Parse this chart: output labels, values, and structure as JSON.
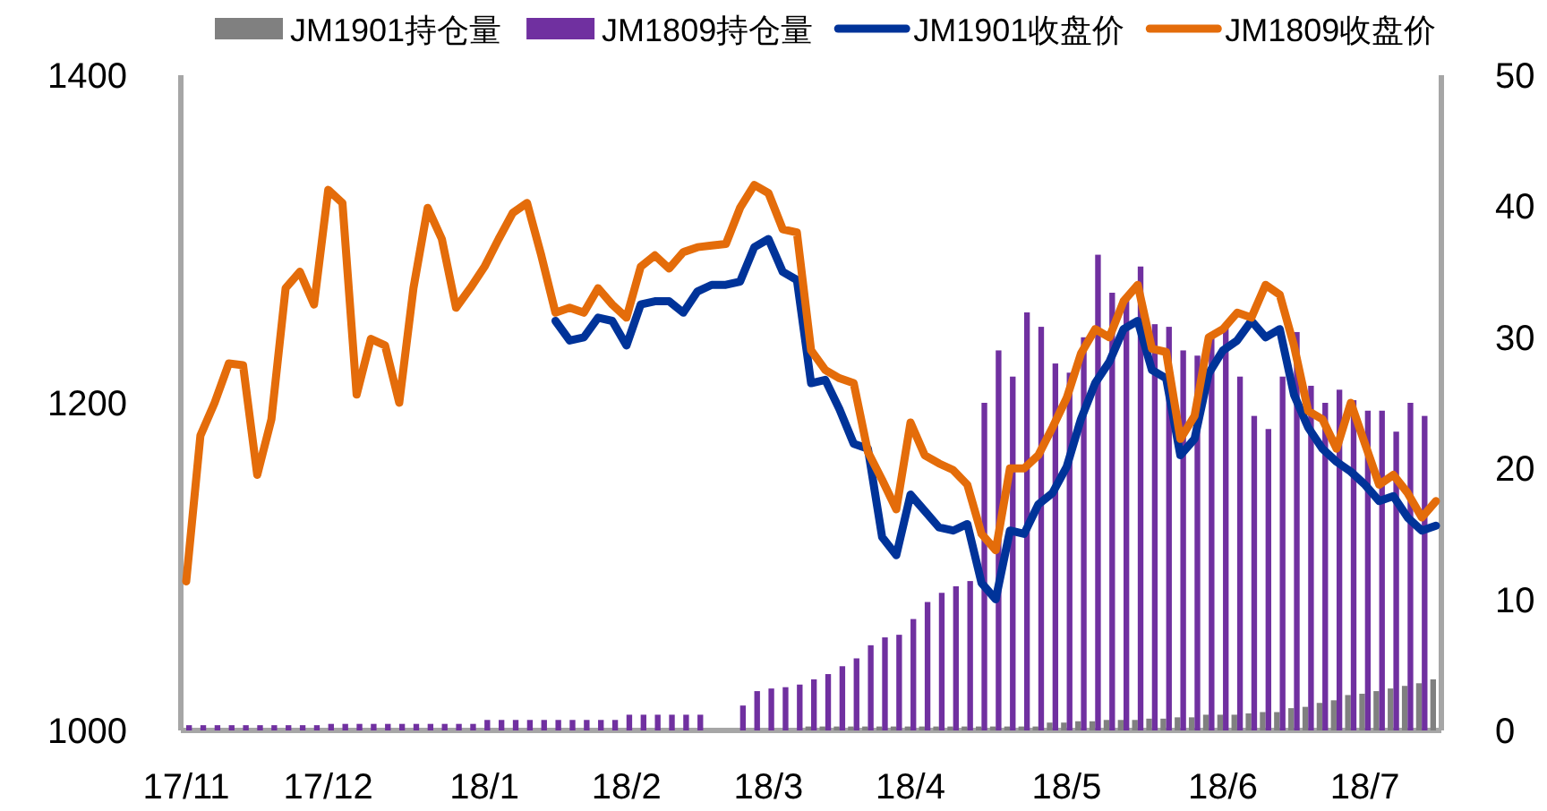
{
  "chart_data": {
    "type": "bar",
    "categories": [
      "17/11",
      null,
      null,
      null,
      null,
      null,
      null,
      null,
      null,
      null,
      "17/12",
      null,
      null,
      null,
      null,
      null,
      null,
      null,
      null,
      null,
      null,
      "18/1",
      null,
      null,
      null,
      null,
      null,
      null,
      null,
      null,
      null,
      "18/2",
      null,
      null,
      null,
      null,
      null,
      null,
      null,
      null,
      null,
      "18/3",
      null,
      null,
      null,
      null,
      null,
      null,
      null,
      null,
      null,
      "18/4",
      null,
      null,
      null,
      null,
      null,
      null,
      null,
      null,
      null,
      null,
      "18/5",
      null,
      null,
      null,
      null,
      null,
      null,
      null,
      null,
      null,
      null,
      "18/6",
      null,
      null,
      null,
      null,
      null,
      null,
      null,
      null,
      null,
      "18/7",
      null,
      null,
      null,
      null,
      null
    ],
    "series": [
      {
        "name": "JM1901持仓量",
        "axis": "y2",
        "color": "#808080",
        "values": [
          null,
          null,
          null,
          null,
          null,
          null,
          null,
          null,
          null,
          null,
          null,
          null,
          null,
          null,
          null,
          null,
          null,
          null,
          null,
          null,
          null,
          null,
          null,
          null,
          null,
          null,
          null,
          null,
          null,
          null,
          null,
          null,
          null,
          null,
          null,
          null,
          null,
          null,
          null,
          null,
          null,
          null,
          null,
          null,
          0.3,
          0.3,
          0.3,
          0.3,
          0.3,
          0.3,
          0.3,
          0.3,
          0.3,
          0.3,
          0.3,
          0.3,
          0.3,
          0.3,
          0.3,
          0.3,
          0.3,
          0.6,
          0.6,
          0.7,
          0.7,
          0.8,
          0.8,
          0.8,
          0.9,
          0.9,
          1.0,
          1.0,
          1.2,
          1.2,
          1.2,
          1.3,
          1.4,
          1.4,
          1.7,
          1.8,
          2.1,
          2.3,
          2.7,
          2.8,
          3.0,
          3.2,
          3.4,
          3.6,
          3.9
        ]
      },
      {
        "name": "JM1809持仓量",
        "axis": "y2",
        "color": "#7030a0",
        "values": [
          0.4,
          0.4,
          0.4,
          0.4,
          0.4,
          0.4,
          0.4,
          0.4,
          0.4,
          0.4,
          0.5,
          0.5,
          0.5,
          0.5,
          0.5,
          0.5,
          0.5,
          0.5,
          0.5,
          0.5,
          0.5,
          0.8,
          0.8,
          0.8,
          0.8,
          0.8,
          0.8,
          0.8,
          0.8,
          0.8,
          0.8,
          1.2,
          1.2,
          1.2,
          1.2,
          1.2,
          1.2,
          null,
          null,
          1.9,
          3,
          3.2,
          3.3,
          3.5,
          3.9,
          4.3,
          4.9,
          5.5,
          6.5,
          7.1,
          7.3,
          8.5,
          9.8,
          10.5,
          11,
          11.4,
          25,
          29,
          27,
          31.9,
          30.8,
          28,
          27.3,
          30,
          36.3,
          33.4,
          33,
          35.4,
          31,
          30.8,
          29,
          28.6,
          30,
          30.8,
          27,
          24,
          23,
          27,
          30.4,
          26.3,
          25,
          26,
          25.2,
          24.4,
          24.4,
          22.8,
          25,
          24,
          null
        ]
      },
      {
        "name": "JM1901收盘价",
        "type": "line",
        "axis": "y",
        "color": "#003399",
        "values": [
          null,
          null,
          null,
          null,
          null,
          null,
          null,
          null,
          null,
          null,
          null,
          null,
          null,
          null,
          null,
          null,
          null,
          null,
          null,
          null,
          null,
          null,
          null,
          null,
          null,
          null,
          1250,
          1238,
          1240,
          1252,
          1250,
          1235,
          1260,
          1262,
          1262,
          1255,
          1268,
          1272,
          1272,
          1274,
          1295,
          1300,
          1280,
          1275,
          1212,
          1214,
          1196,
          1175,
          1172,
          1118,
          1107,
          1144,
          1134,
          1124,
          1122,
          1126,
          1090,
          1080,
          1122,
          1120,
          1138,
          1145,
          1161,
          1190,
          1212,
          1225,
          1245,
          1250,
          1220,
          1215,
          1168,
          1178,
          1218,
          1232,
          1238,
          1250,
          1240,
          1245,
          1205,
          1185,
          1172,
          1164,
          1158,
          1150,
          1140,
          1143,
          1130,
          1122,
          1125
        ]
      },
      {
        "name": "JM1809收盘价",
        "type": "line",
        "axis": "y",
        "color": "#e46c0a",
        "values": [
          1091,
          1180,
          1200,
          1224,
          1223,
          1156,
          1190,
          1270,
          1280,
          1260,
          1330,
          1322,
          1205,
          1239,
          1235,
          1200,
          1270,
          1319,
          1300,
          1258,
          1270,
          1283,
          1300,
          1316,
          1322,
          1290,
          1255,
          1258,
          1255,
          1270,
          1260,
          1252,
          1283,
          1290,
          1282,
          1292,
          1295,
          1296,
          1297,
          1319,
          1333,
          1328,
          1306,
          1304,
          1232,
          1220,
          1215,
          1212,
          1170,
          1153,
          1135,
          1188,
          1168,
          1163,
          1159,
          1150,
          1120,
          1110,
          1160,
          1160,
          1168,
          1185,
          1203,
          1230,
          1245,
          1240,
          1262,
          1272,
          1233,
          1231,
          1178,
          1192,
          1240,
          1245,
          1255,
          1252,
          1272,
          1266,
          1235,
          1195,
          1190,
          1172,
          1200,
          1175,
          1150,
          1156,
          1145,
          1130,
          1140
        ]
      }
    ],
    "ylim": [
      1000,
      1400
    ],
    "yticks": [
      1000,
      1200,
      1400
    ],
    "y2lim": [
      0,
      50
    ],
    "y2ticks": [
      0,
      10,
      20,
      30,
      40,
      50
    ],
    "legend": "top"
  }
}
